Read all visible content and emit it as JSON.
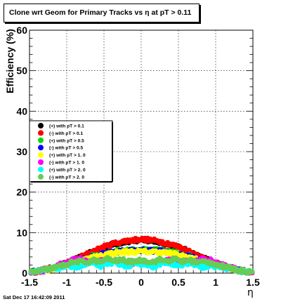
{
  "title": "Clone wrt Geom for Primary Tracks vs   η at pT > 0.11",
  "footer": "Sat Dec 17 16:42:09 2011",
  "chart_data": {
    "type": "scatter",
    "title": "Clone wrt Geom for Primary Tracks vs   η at pT > 0.11",
    "xlabel": "η",
    "ylabel": "Efficiency (%)",
    "xlim": [
      -1.5,
      1.5
    ],
    "ylim": [
      0,
      60
    ],
    "xticks": [
      "-1.5",
      "-1",
      "-0.5",
      "0",
      "0.5",
      "1",
      "1.5"
    ],
    "yticks": [
      "0",
      "10",
      "20",
      "30",
      "40",
      "50",
      "60"
    ],
    "grid": true,
    "legend_position": "left-middle",
    "x": [
      -1.45,
      -1.35,
      -1.25,
      -1.15,
      -1.05,
      -0.95,
      -0.85,
      -0.75,
      -0.65,
      -0.55,
      -0.45,
      -0.35,
      -0.25,
      -0.15,
      -0.05,
      0.05,
      0.15,
      0.25,
      0.35,
      0.45,
      0.55,
      0.65,
      0.75,
      0.85,
      0.95,
      1.05,
      1.15,
      1.25,
      1.35,
      1.45
    ],
    "series": [
      {
        "name": "(+) with pT > 0.1",
        "color": "#000000",
        "values": [
          0.3,
          0.6,
          1.0,
          1.5,
          2.1,
          2.8,
          3.6,
          4.4,
          5.2,
          6.0,
          6.7,
          7.2,
          7.6,
          7.9,
          8.0,
          8.0,
          7.9,
          7.6,
          7.2,
          6.7,
          6.0,
          5.2,
          4.4,
          3.6,
          2.8,
          2.1,
          1.5,
          1.0,
          0.6,
          0.3
        ]
      },
      {
        "name": "(-) with pT > 0.1",
        "color": "#ff0000",
        "values": [
          0.3,
          0.6,
          1.0,
          1.5,
          2.1,
          2.8,
          3.6,
          4.5,
          5.3,
          6.1,
          6.8,
          7.4,
          7.8,
          8.1,
          8.3,
          8.3,
          8.1,
          7.8,
          7.4,
          6.8,
          6.1,
          5.3,
          4.5,
          3.6,
          2.8,
          2.1,
          1.5,
          1.0,
          0.6,
          0.3
        ]
      },
      {
        "name": "(+) with pT > 0.5",
        "color": "#00dd00",
        "values": [
          0.2,
          0.5,
          0.9,
          1.3,
          1.8,
          2.4,
          3.0,
          3.6,
          4.2,
          4.7,
          5.1,
          5.4,
          5.6,
          5.7,
          5.7,
          5.7,
          5.7,
          5.6,
          5.4,
          5.1,
          4.7,
          4.2,
          3.6,
          3.0,
          2.4,
          1.8,
          1.3,
          0.9,
          0.5,
          0.2
        ]
      },
      {
        "name": "(-) with pT > 0.5",
        "color": "#0000ff",
        "values": [
          0.2,
          0.5,
          0.9,
          1.3,
          1.8,
          2.3,
          2.9,
          3.5,
          4.0,
          4.5,
          4.9,
          5.2,
          5.4,
          5.5,
          5.5,
          5.5,
          5.5,
          5.4,
          5.2,
          4.9,
          4.5,
          4.0,
          3.5,
          2.9,
          2.3,
          1.8,
          1.3,
          0.9,
          0.5,
          0.2
        ]
      },
      {
        "name": "(+) with pT > 1. 0",
        "color": "#ffff00",
        "values": [
          0.2,
          0.5,
          0.8,
          1.2,
          1.7,
          2.2,
          2.8,
          3.3,
          3.9,
          4.3,
          4.7,
          5.0,
          5.2,
          5.3,
          5.3,
          5.3,
          5.3,
          5.2,
          5.0,
          4.7,
          4.3,
          3.9,
          3.3,
          2.8,
          2.2,
          1.7,
          1.2,
          0.8,
          0.5,
          0.2
        ]
      },
      {
        "name": "(-) with pT > 1. 0",
        "color": "#ff00ff",
        "values": [
          0.2,
          0.6,
          1.1,
          1.6,
          2.3,
          3.0,
          3.5,
          3.2,
          2.8,
          3.0,
          3.3,
          3.0,
          2.6,
          2.4,
          2.5,
          2.5,
          2.4,
          2.6,
          3.0,
          3.3,
          3.0,
          2.8,
          3.2,
          3.5,
          3.0,
          2.3,
          1.6,
          1.1,
          0.6,
          0.2
        ]
      },
      {
        "name": "(+) with pT > 2. 0",
        "color": "#00ffff",
        "values": [
          0.2,
          0.5,
          0.9,
          1.2,
          1.5,
          1.8,
          1.4,
          2.0,
          2.5,
          1.8,
          2.2,
          2.8,
          2.0,
          1.6,
          2.3,
          2.3,
          1.6,
          2.0,
          2.8,
          2.2,
          1.8,
          2.5,
          2.0,
          1.4,
          1.8,
          1.5,
          1.2,
          0.9,
          0.5,
          0.2
        ]
      },
      {
        "name": "(-) with pT > 2. 0",
        "color": "#66cc55",
        "values": [
          0.2,
          0.6,
          1.0,
          1.4,
          1.9,
          2.5,
          2.9,
          2.6,
          3.2,
          2.8,
          3.5,
          3.0,
          3.3,
          2.7,
          3.1,
          3.1,
          2.7,
          3.3,
          3.0,
          3.5,
          2.8,
          3.2,
          2.6,
          2.9,
          2.5,
          1.9,
          1.4,
          1.0,
          0.6,
          0.2
        ]
      }
    ]
  }
}
